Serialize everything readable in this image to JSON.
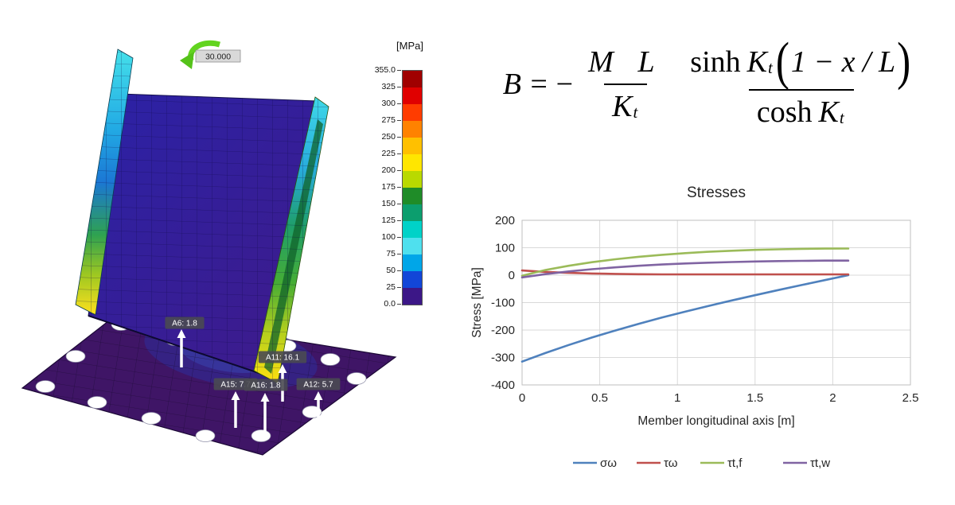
{
  "fem": {
    "unit_label": "[MPa]",
    "moment_label": "30.000",
    "scale_ticks": [
      "355.0",
      "325",
      "300",
      "275",
      "250",
      "225",
      "200",
      "175",
      "150",
      "125",
      "100",
      "75",
      "50",
      "25",
      "0.0"
    ],
    "scale_colors": [
      "#a00000",
      "#e00000",
      "#ff3c00",
      "#ff8200",
      "#ffc000",
      "#ffe600",
      "#b9d900",
      "#1f8c28",
      "#0c9e6e",
      "#00d2c8",
      "#4fe0ee",
      "#00a6e8",
      "#1246d8",
      "#3c1787"
    ],
    "annotations": [
      "A6: 1.8",
      "A11: 16.1",
      "A15: 7.7",
      "A16: 1.8",
      "A12: 5.7"
    ]
  },
  "formula": {
    "lhs": "B",
    "equals": "=",
    "minus": "−",
    "frac1_num": "M L",
    "frac1_den_base": "K",
    "frac1_den_sub": "t",
    "frac2_num_fn": "sinh",
    "frac2_num_base": "K",
    "frac2_num_sub": "t",
    "paren_open": "(",
    "frac2_num_arg": "1 − x / L",
    "paren_close": ")",
    "frac2_den_fn": "cosh",
    "frac2_den_base": "K",
    "frac2_den_sub": "t"
  },
  "chart_data": {
    "type": "line",
    "title": "Stresses",
    "xlabel": "Member longitudinal axis [m]",
    "ylabel": "Stress [MPa]",
    "xlim": [
      0,
      2.5
    ],
    "ylim": [
      -400,
      200
    ],
    "xticks": [
      0,
      0.5,
      1,
      1.5,
      2,
      2.5
    ],
    "yticks": [
      200,
      100,
      0,
      -100,
      -200,
      -300,
      -400
    ],
    "grid": true,
    "legend_position": "bottom",
    "x": [
      0,
      0.15,
      0.3,
      0.45,
      0.6,
      0.75,
      0.9,
      1.05,
      1.2,
      1.35,
      1.5,
      1.65,
      1.8,
      1.95,
      2.1
    ],
    "series": [
      {
        "name": "σω",
        "color": "#4F81BD",
        "values": [
          -315,
          -283.8,
          -254.5,
          -227.2,
          -201.6,
          -177.4,
          -154.6,
          -132.9,
          -112.1,
          -92.2,
          -73,
          -54.3,
          -35.9,
          -17.9,
          0
        ]
      },
      {
        "name": "τω",
        "color": "#C0504D",
        "values": [
          17,
          12,
          8.5,
          6,
          4.5,
          3.5,
          3,
          3,
          3,
          3,
          3,
          3,
          3,
          3,
          3
        ]
      },
      {
        "name": "τt,f",
        "color": "#9BBB59",
        "values": [
          -2,
          18.7,
          34.3,
          47.2,
          58,
          66.9,
          74.3,
          80.3,
          85.1,
          89,
          92.1,
          94.3,
          95.9,
          96.8,
          97
        ]
      },
      {
        "name": "τt,w",
        "color": "#8064A2",
        "values": [
          -8,
          3.8,
          13.6,
          21.7,
          28.5,
          34.1,
          38.7,
          42.5,
          45.5,
          47.9,
          49.9,
          51.3,
          52.3,
          52.9,
          53
        ]
      }
    ]
  }
}
